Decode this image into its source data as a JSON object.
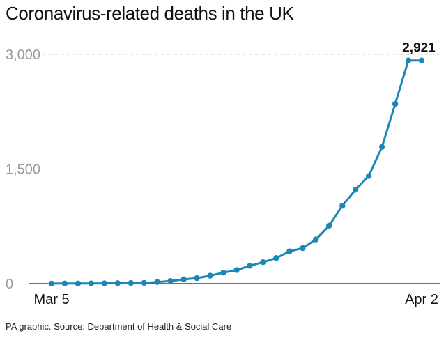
{
  "title": "Coronavirus-related deaths in the UK",
  "source": "PA graphic. Source: Department of Health & Social Care",
  "colors": {
    "line": "#1a87b8",
    "grid": "#d0d0d0",
    "axis": "#444444",
    "tick_text": "#9a9a9a",
    "text": "#111111"
  },
  "chart_data": {
    "type": "line",
    "title": "Coronavirus-related deaths in the UK",
    "xlabel": "",
    "ylabel": "",
    "x_tick_labels": [
      "Mar 5",
      "Apr 2"
    ],
    "y_ticks": [
      0,
      1500,
      3000
    ],
    "y_tick_labels": [
      "0",
      "1,500",
      "3,000"
    ],
    "ylim": [
      0,
      3000
    ],
    "grid": "horizontal dashed",
    "end_label": "2,921",
    "series": [
      {
        "x": [
          "Mar 5",
          "Mar 6",
          "Mar 7",
          "Mar 8",
          "Mar 9",
          "Mar 10",
          "Mar 11",
          "Mar 12",
          "Mar 13",
          "Mar 14",
          "Mar 15",
          "Mar 16",
          "Mar 17",
          "Mar 18",
          "Mar 19",
          "Mar 20",
          "Mar 21",
          "Mar 22",
          "Mar 23",
          "Mar 24",
          "Mar 25",
          "Mar 26",
          "Mar 27",
          "Mar 28",
          "Mar 29",
          "Mar 30",
          "Mar 31",
          "Apr 1",
          "Apr 2"
        ],
        "values": [
          1,
          2,
          2,
          3,
          4,
          6,
          8,
          10,
          21,
          35,
          56,
          72,
          104,
          144,
          177,
          233,
          281,
          335,
          422,
          465,
          578,
          759,
          1019,
          1228,
          1408,
          1789,
          2352,
          2921,
          2921
        ]
      }
    ]
  }
}
